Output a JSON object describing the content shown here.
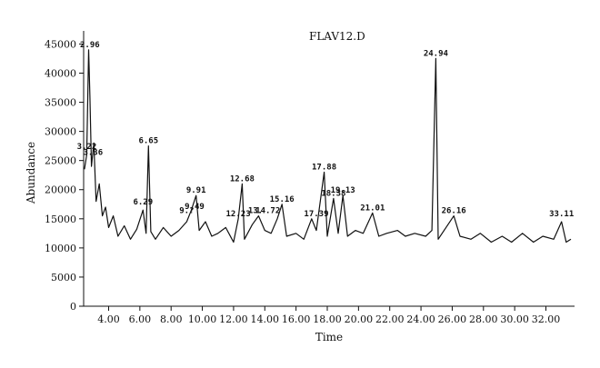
{
  "chart_data": {
    "type": "line",
    "title": "FLAV12.D",
    "xlabel": "Time",
    "ylabel": "Abundance",
    "xlim": [
      2.4,
      33.6
    ],
    "ylim": [
      0,
      46000
    ],
    "x_ticks": [
      "4.00",
      "6.00",
      "8.00",
      "10.00",
      "12.00",
      "14.00",
      "16.00",
      "18.00",
      "20.00",
      "22.00",
      "24.00",
      "26.00",
      "28.00",
      "30.00",
      "32.00"
    ],
    "y_ticks": [
      "0",
      "5000",
      "10000",
      "15000",
      "20000",
      "25000",
      "30000",
      "35000",
      "40000",
      "45000"
    ],
    "grid": false,
    "series": [
      {
        "values": [
          [
            2.45,
            23500
          ],
          [
            2.6,
            26000
          ],
          [
            2.72,
            44000
          ],
          [
            2.8,
            36000
          ],
          [
            2.9,
            24000
          ],
          [
            3.05,
            28000
          ],
          [
            3.2,
            18000
          ],
          [
            3.4,
            21000
          ],
          [
            3.6,
            15500
          ],
          [
            3.8,
            17000
          ],
          [
            4.0,
            13500
          ],
          [
            4.3,
            15500
          ],
          [
            4.6,
            12000
          ],
          [
            5.0,
            13800
          ],
          [
            5.4,
            11500
          ],
          [
            5.8,
            13200
          ],
          [
            6.2,
            16500
          ],
          [
            6.4,
            12500
          ],
          [
            6.55,
            27500
          ],
          [
            6.7,
            12800
          ],
          [
            7.0,
            11500
          ],
          [
            7.5,
            13500
          ],
          [
            8.0,
            12000
          ],
          [
            8.5,
            13000
          ],
          [
            9.0,
            14500
          ],
          [
            9.3,
            16500
          ],
          [
            9.6,
            19000
          ],
          [
            9.8,
            13000
          ],
          [
            10.2,
            14500
          ],
          [
            10.6,
            12000
          ],
          [
            11.0,
            12500
          ],
          [
            11.5,
            13500
          ],
          [
            12.0,
            11000
          ],
          [
            12.3,
            15000
          ],
          [
            12.55,
            21000
          ],
          [
            12.7,
            11500
          ],
          [
            13.2,
            14000
          ],
          [
            13.6,
            15500
          ],
          [
            14.0,
            13000
          ],
          [
            14.4,
            12500
          ],
          [
            14.8,
            15000
          ],
          [
            15.1,
            17500
          ],
          [
            15.4,
            12000
          ],
          [
            16.0,
            12500
          ],
          [
            16.5,
            11500
          ],
          [
            17.0,
            15000
          ],
          [
            17.3,
            13000
          ],
          [
            17.8,
            23000
          ],
          [
            18.0,
            12000
          ],
          [
            18.4,
            18500
          ],
          [
            18.7,
            12500
          ],
          [
            19.0,
            19000
          ],
          [
            19.3,
            12000
          ],
          [
            19.8,
            13000
          ],
          [
            20.3,
            12500
          ],
          [
            20.9,
            16000
          ],
          [
            21.3,
            12000
          ],
          [
            21.8,
            12500
          ],
          [
            22.5,
            13000
          ],
          [
            23.0,
            12000
          ],
          [
            23.6,
            12500
          ],
          [
            24.3,
            12000
          ],
          [
            24.7,
            13000
          ],
          [
            24.95,
            42500
          ],
          [
            25.1,
            11500
          ],
          [
            25.6,
            13500
          ],
          [
            26.1,
            15500
          ],
          [
            26.5,
            12000
          ],
          [
            27.2,
            11500
          ],
          [
            27.8,
            12500
          ],
          [
            28.5,
            11000
          ],
          [
            29.2,
            12000
          ],
          [
            29.8,
            11000
          ],
          [
            30.5,
            12500
          ],
          [
            31.2,
            11000
          ],
          [
            31.8,
            12000
          ],
          [
            32.5,
            11500
          ],
          [
            33.0,
            14500
          ],
          [
            33.3,
            11000
          ],
          [
            33.6,
            11500
          ]
        ]
      }
    ],
    "peak_labels": [
      {
        "x": 2.8,
        "y": 44000,
        "text": "2.96"
      },
      {
        "x": 2.6,
        "y": 26500,
        "text": "3.22"
      },
      {
        "x": 3.0,
        "y": 25500,
        "text": "3.36"
      },
      {
        "x": 6.55,
        "y": 27500,
        "text": "6.65"
      },
      {
        "x": 6.2,
        "y": 17000,
        "text": "6.29"
      },
      {
        "x": 9.6,
        "y": 19000,
        "text": "9.91"
      },
      {
        "x": 9.5,
        "y": 16200,
        "text": "9.49"
      },
      {
        "x": 9.0,
        "y": 15500,
        "text": "9.?"
      },
      {
        "x": 12.3,
        "y": 15000,
        "text": "12.23"
      },
      {
        "x": 12.55,
        "y": 21000,
        "text": "12.68"
      },
      {
        "x": 13.4,
        "y": 15500,
        "text": "13."
      },
      {
        "x": 14.2,
        "y": 15500,
        "text": "14.72"
      },
      {
        "x": 15.1,
        "y": 17500,
        "text": "15.16"
      },
      {
        "x": 17.3,
        "y": 15000,
        "text": "17.39"
      },
      {
        "x": 17.8,
        "y": 23000,
        "text": "17.88"
      },
      {
        "x": 18.4,
        "y": 18500,
        "text": "18.38"
      },
      {
        "x": 19.0,
        "y": 19000,
        "text": "19.13"
      },
      {
        "x": 20.9,
        "y": 16000,
        "text": "21.01"
      },
      {
        "x": 24.95,
        "y": 42500,
        "text": "24.94"
      },
      {
        "x": 26.1,
        "y": 15500,
        "text": "26.16"
      },
      {
        "x": 33.0,
        "y": 15000,
        "text": "33.11"
      }
    ]
  }
}
